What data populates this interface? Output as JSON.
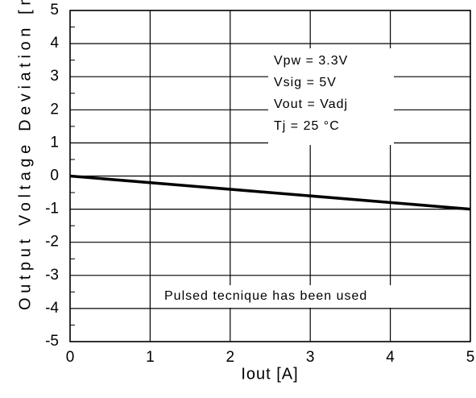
{
  "chart_data": {
    "type": "line",
    "x_label": "Iout [A]",
    "y_label": "Output  Voltage  Deviation  [m",
    "x": [
      0,
      5
    ],
    "series": [
      {
        "color": "#000000",
        "values": [
          0,
          -1
        ]
      }
    ],
    "xlim": [
      0,
      5
    ],
    "xticks": [
      0,
      1,
      2,
      3,
      4,
      5
    ],
    "ylim": [
      -5,
      5
    ],
    "yticks": [
      -5,
      -4,
      -3,
      -2,
      -1,
      0,
      1,
      2,
      3,
      4,
      5
    ],
    "grid": true,
    "annotations": [
      "Vpw = 3.3V",
      "Vsig = 5V",
      "Vout = Vadj",
      "Tj = 25 °C",
      "Pulsed tecnique has been used"
    ]
  }
}
